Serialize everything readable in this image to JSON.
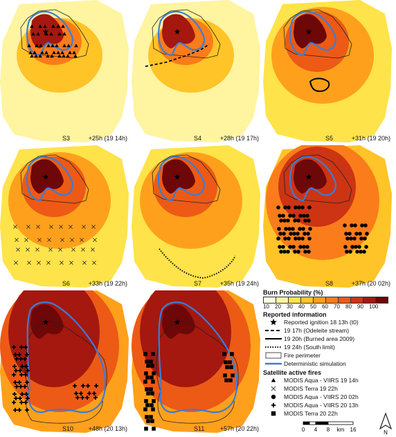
{
  "panels": [
    {
      "code": "S3",
      "time": "+25h (19 14h)"
    },
    {
      "code": "S4",
      "time": "+28h (19 17h)"
    },
    {
      "code": "S5",
      "time": "+31h (19 20h)"
    },
    {
      "code": "S6",
      "time": "+33h (19 22h)"
    },
    {
      "code": "S7",
      "time": "+35h (19 24h)"
    },
    {
      "code": "S8",
      "time": "+37h (20 02h)"
    },
    {
      "code": "S10",
      "time": "+48h (20 13h)"
    },
    {
      "code": "S11",
      "time": "+57h (20 22h)"
    }
  ],
  "legend": {
    "burn_title": "Burn Probability (%)",
    "burn_ticks": [
      "10",
      "20",
      "30",
      "40",
      "50",
      "60",
      "70",
      "80",
      "90",
      "100"
    ],
    "burn_colors": [
      "#fffbe0",
      "#fff4a0",
      "#ffe34a",
      "#ffc428",
      "#ffa01c",
      "#fb7c1a",
      "#ec5a16",
      "#cc3414",
      "#a4180f",
      "#6e0707"
    ],
    "reported_title": "Reported information",
    "reported_items": [
      {
        "symbol": "star",
        "label": "Reported ignition 18 13h (t0)"
      },
      {
        "symbol": "dash",
        "label": "19 17h (Odeleite stream)"
      },
      {
        "symbol": "solid",
        "label": "19 20h (Burned area 2009)"
      },
      {
        "symbol": "dot",
        "label": "19 24h (South limit)"
      },
      {
        "symbol": "box",
        "label": "Fire perimeter"
      },
      {
        "symbol": "blue",
        "label": "Deterministic simulation"
      }
    ],
    "satellite_title": "Satellite active fires",
    "satellite_items": [
      {
        "symbol": "triangle",
        "label": "MODIS Aqua - VIIRS 19 14h"
      },
      {
        "symbol": "x",
        "label": "MODIS Terra 19 22h"
      },
      {
        "symbol": "circle",
        "label": "MODIS Aqua - VIIRS 20 02h"
      },
      {
        "symbol": "plus",
        "label": "MODIS Aqua - VIIRS 20 13h"
      },
      {
        "symbol": "square",
        "label": "MODIS Terra 20 22h"
      }
    ]
  },
  "scalebar": {
    "ticks": [
      "0",
      "4",
      "8",
      "16"
    ],
    "unit": "km"
  },
  "north_label": "N",
  "colors": {
    "simulation": "#3a7dd8",
    "perimeter": "#222222"
  }
}
